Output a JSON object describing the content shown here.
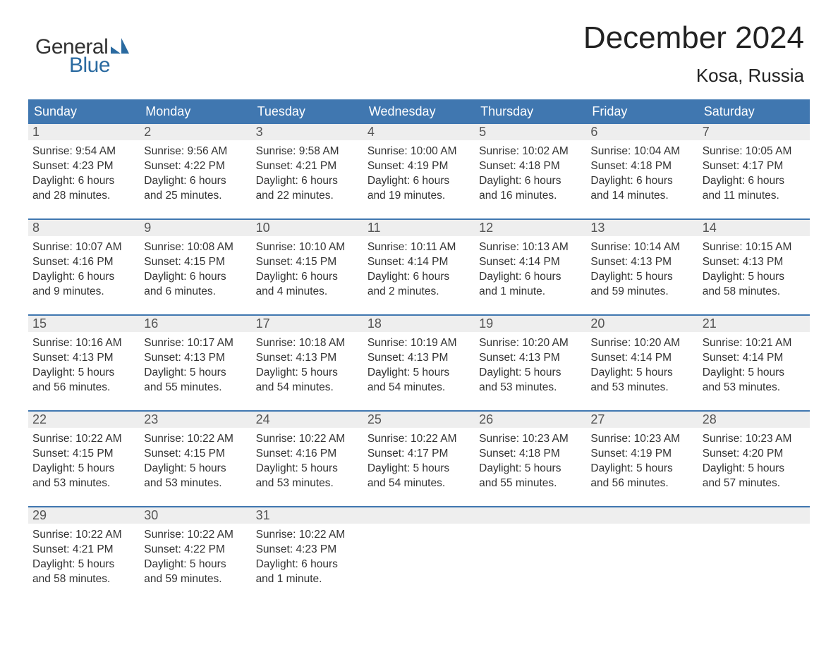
{
  "brand": {
    "name1": "General",
    "name2": "Blue",
    "sail_color": "#2a6aa0"
  },
  "title": "December 2024",
  "location": "Kosa, Russia",
  "colors": {
    "accent": "#4077b0",
    "day_number_bg": "#eeeeee",
    "row_border": "#4077b0",
    "background": "#ffffff",
    "text": "#333333"
  },
  "weekdays": [
    "Sunday",
    "Monday",
    "Tuesday",
    "Wednesday",
    "Thursday",
    "Friday",
    "Saturday"
  ],
  "weeks": [
    [
      {
        "n": "1",
        "sunrise": "Sunrise: 9:54 AM",
        "sunset": "Sunset: 4:23 PM",
        "daylight1": "Daylight: 6 hours",
        "daylight2": "and 28 minutes."
      },
      {
        "n": "2",
        "sunrise": "Sunrise: 9:56 AM",
        "sunset": "Sunset: 4:22 PM",
        "daylight1": "Daylight: 6 hours",
        "daylight2": "and 25 minutes."
      },
      {
        "n": "3",
        "sunrise": "Sunrise: 9:58 AM",
        "sunset": "Sunset: 4:21 PM",
        "daylight1": "Daylight: 6 hours",
        "daylight2": "and 22 minutes."
      },
      {
        "n": "4",
        "sunrise": "Sunrise: 10:00 AM",
        "sunset": "Sunset: 4:19 PM",
        "daylight1": "Daylight: 6 hours",
        "daylight2": "and 19 minutes."
      },
      {
        "n": "5",
        "sunrise": "Sunrise: 10:02 AM",
        "sunset": "Sunset: 4:18 PM",
        "daylight1": "Daylight: 6 hours",
        "daylight2": "and 16 minutes."
      },
      {
        "n": "6",
        "sunrise": "Sunrise: 10:04 AM",
        "sunset": "Sunset: 4:18 PM",
        "daylight1": "Daylight: 6 hours",
        "daylight2": "and 14 minutes."
      },
      {
        "n": "7",
        "sunrise": "Sunrise: 10:05 AM",
        "sunset": "Sunset: 4:17 PM",
        "daylight1": "Daylight: 6 hours",
        "daylight2": "and 11 minutes."
      }
    ],
    [
      {
        "n": "8",
        "sunrise": "Sunrise: 10:07 AM",
        "sunset": "Sunset: 4:16 PM",
        "daylight1": "Daylight: 6 hours",
        "daylight2": "and 9 minutes."
      },
      {
        "n": "9",
        "sunrise": "Sunrise: 10:08 AM",
        "sunset": "Sunset: 4:15 PM",
        "daylight1": "Daylight: 6 hours",
        "daylight2": "and 6 minutes."
      },
      {
        "n": "10",
        "sunrise": "Sunrise: 10:10 AM",
        "sunset": "Sunset: 4:15 PM",
        "daylight1": "Daylight: 6 hours",
        "daylight2": "and 4 minutes."
      },
      {
        "n": "11",
        "sunrise": "Sunrise: 10:11 AM",
        "sunset": "Sunset: 4:14 PM",
        "daylight1": "Daylight: 6 hours",
        "daylight2": "and 2 minutes."
      },
      {
        "n": "12",
        "sunrise": "Sunrise: 10:13 AM",
        "sunset": "Sunset: 4:14 PM",
        "daylight1": "Daylight: 6 hours",
        "daylight2": "and 1 minute."
      },
      {
        "n": "13",
        "sunrise": "Sunrise: 10:14 AM",
        "sunset": "Sunset: 4:13 PM",
        "daylight1": "Daylight: 5 hours",
        "daylight2": "and 59 minutes."
      },
      {
        "n": "14",
        "sunrise": "Sunrise: 10:15 AM",
        "sunset": "Sunset: 4:13 PM",
        "daylight1": "Daylight: 5 hours",
        "daylight2": "and 58 minutes."
      }
    ],
    [
      {
        "n": "15",
        "sunrise": "Sunrise: 10:16 AM",
        "sunset": "Sunset: 4:13 PM",
        "daylight1": "Daylight: 5 hours",
        "daylight2": "and 56 minutes."
      },
      {
        "n": "16",
        "sunrise": "Sunrise: 10:17 AM",
        "sunset": "Sunset: 4:13 PM",
        "daylight1": "Daylight: 5 hours",
        "daylight2": "and 55 minutes."
      },
      {
        "n": "17",
        "sunrise": "Sunrise: 10:18 AM",
        "sunset": "Sunset: 4:13 PM",
        "daylight1": "Daylight: 5 hours",
        "daylight2": "and 54 minutes."
      },
      {
        "n": "18",
        "sunrise": "Sunrise: 10:19 AM",
        "sunset": "Sunset: 4:13 PM",
        "daylight1": "Daylight: 5 hours",
        "daylight2": "and 54 minutes."
      },
      {
        "n": "19",
        "sunrise": "Sunrise: 10:20 AM",
        "sunset": "Sunset: 4:13 PM",
        "daylight1": "Daylight: 5 hours",
        "daylight2": "and 53 minutes."
      },
      {
        "n": "20",
        "sunrise": "Sunrise: 10:20 AM",
        "sunset": "Sunset: 4:14 PM",
        "daylight1": "Daylight: 5 hours",
        "daylight2": "and 53 minutes."
      },
      {
        "n": "21",
        "sunrise": "Sunrise: 10:21 AM",
        "sunset": "Sunset: 4:14 PM",
        "daylight1": "Daylight: 5 hours",
        "daylight2": "and 53 minutes."
      }
    ],
    [
      {
        "n": "22",
        "sunrise": "Sunrise: 10:22 AM",
        "sunset": "Sunset: 4:15 PM",
        "daylight1": "Daylight: 5 hours",
        "daylight2": "and 53 minutes."
      },
      {
        "n": "23",
        "sunrise": "Sunrise: 10:22 AM",
        "sunset": "Sunset: 4:15 PM",
        "daylight1": "Daylight: 5 hours",
        "daylight2": "and 53 minutes."
      },
      {
        "n": "24",
        "sunrise": "Sunrise: 10:22 AM",
        "sunset": "Sunset: 4:16 PM",
        "daylight1": "Daylight: 5 hours",
        "daylight2": "and 53 minutes."
      },
      {
        "n": "25",
        "sunrise": "Sunrise: 10:22 AM",
        "sunset": "Sunset: 4:17 PM",
        "daylight1": "Daylight: 5 hours",
        "daylight2": "and 54 minutes."
      },
      {
        "n": "26",
        "sunrise": "Sunrise: 10:23 AM",
        "sunset": "Sunset: 4:18 PM",
        "daylight1": "Daylight: 5 hours",
        "daylight2": "and 55 minutes."
      },
      {
        "n": "27",
        "sunrise": "Sunrise: 10:23 AM",
        "sunset": "Sunset: 4:19 PM",
        "daylight1": "Daylight: 5 hours",
        "daylight2": "and 56 minutes."
      },
      {
        "n": "28",
        "sunrise": "Sunrise: 10:23 AM",
        "sunset": "Sunset: 4:20 PM",
        "daylight1": "Daylight: 5 hours",
        "daylight2": "and 57 minutes."
      }
    ],
    [
      {
        "n": "29",
        "sunrise": "Sunrise: 10:22 AM",
        "sunset": "Sunset: 4:21 PM",
        "daylight1": "Daylight: 5 hours",
        "daylight2": "and 58 minutes."
      },
      {
        "n": "30",
        "sunrise": "Sunrise: 10:22 AM",
        "sunset": "Sunset: 4:22 PM",
        "daylight1": "Daylight: 5 hours",
        "daylight2": "and 59 minutes."
      },
      {
        "n": "31",
        "sunrise": "Sunrise: 10:22 AM",
        "sunset": "Sunset: 4:23 PM",
        "daylight1": "Daylight: 6 hours",
        "daylight2": "and 1 minute."
      },
      null,
      null,
      null,
      null
    ]
  ]
}
